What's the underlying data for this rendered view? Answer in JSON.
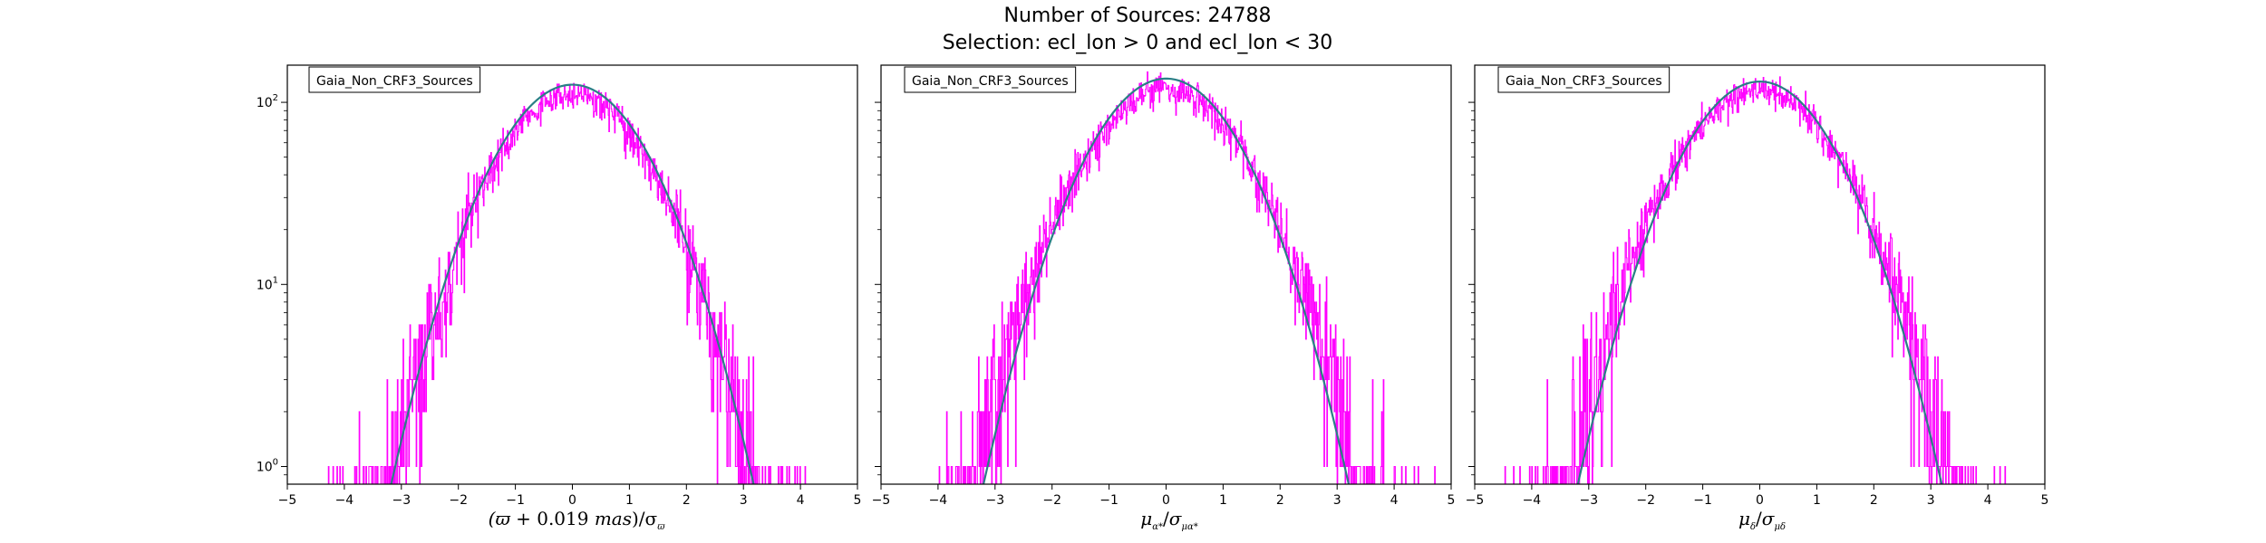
{
  "figure": {
    "title_line1": "Number of Sources: 24788",
    "title_line2": "Selection: ecl_lon > 0 and ecl_lon < 30"
  },
  "colors": {
    "histogram": "#ff00ff",
    "fit": "#2a7f86",
    "axes": "#000000"
  },
  "chart_data": [
    {
      "type": "histogram",
      "legend": "Gaia_Non_CRF3_Sources",
      "xlabel": "(ϖ + 0.019 mas)/σϖ",
      "xlim": [
        -5,
        5
      ],
      "ylim": [
        0.8,
        160
      ],
      "yscale": "log",
      "xticks": [
        "−5",
        "−4",
        "−3",
        "−2",
        "−1",
        "0",
        "1",
        "2",
        "3",
        "4",
        "5"
      ],
      "yticks": [
        {
          "base": "10",
          "exp": "2",
          "value": 100
        },
        {
          "base": "10",
          "exp": "1",
          "value": 10
        },
        {
          "base": "10",
          "exp": "0",
          "value": 1
        }
      ],
      "legend_position": "upper-left",
      "series": [
        {
          "kind": "histogram",
          "data_range": [
            -4.4,
            4.4
          ],
          "peak": 112,
          "sigma": 1.02,
          "center": 0.0
        },
        {
          "kind": "gaussian-fit",
          "peak": 125,
          "sigma": 1.0,
          "center": 0.0,
          "x_range": [
            -3.2,
            3.3
          ]
        }
      ]
    },
    {
      "type": "histogram",
      "legend": "Gaia_Non_CRF3_Sources",
      "xlabel": "μα*/σμα*",
      "xlim": [
        -5,
        5
      ],
      "ylim": [
        0.8,
        160
      ],
      "yscale": "log",
      "xticks": [
        "−5",
        "−4",
        "−3",
        "−2",
        "−1",
        "0",
        "1",
        "2",
        "3",
        "4",
        "5"
      ],
      "yticks": [
        {
          "base": "10",
          "exp": "2",
          "value": 100
        },
        {
          "base": "10",
          "exp": "1",
          "value": 10
        },
        {
          "base": "10",
          "exp": "0",
          "value": 1
        }
      ],
      "legend_position": "upper-left",
      "series": [
        {
          "kind": "histogram",
          "data_range": [
            -4.9,
            4.9
          ],
          "peak": 118,
          "sigma": 1.08,
          "center": 0.0
        },
        {
          "kind": "gaussian-fit",
          "peak": 135,
          "sigma": 1.0,
          "center": 0.0,
          "x_range": [
            -3.4,
            3.4
          ]
        }
      ]
    },
    {
      "type": "histogram",
      "legend": "Gaia_Non_CRF3_Sources",
      "xlabel": "μδ/σμδ",
      "xlim": [
        -5,
        5
      ],
      "ylim": [
        0.8,
        160
      ],
      "yscale": "log",
      "xticks": [
        "−5",
        "−4",
        "−3",
        "−2",
        "−1",
        "0",
        "1",
        "2",
        "3",
        "4",
        "5"
      ],
      "yticks": [
        {
          "base": "10",
          "exp": "2",
          "value": 100
        },
        {
          "base": "10",
          "exp": "1",
          "value": 10
        },
        {
          "base": "10",
          "exp": "0",
          "value": 1
        }
      ],
      "legend_position": "upper-left",
      "series": [
        {
          "kind": "histogram",
          "data_range": [
            -4.9,
            4.9
          ],
          "peak": 115,
          "sigma": 1.08,
          "center": 0.0
        },
        {
          "kind": "gaussian-fit",
          "peak": 130,
          "sigma": 1.0,
          "center": 0.0,
          "x_range": [
            -3.4,
            3.4
          ]
        }
      ]
    }
  ]
}
